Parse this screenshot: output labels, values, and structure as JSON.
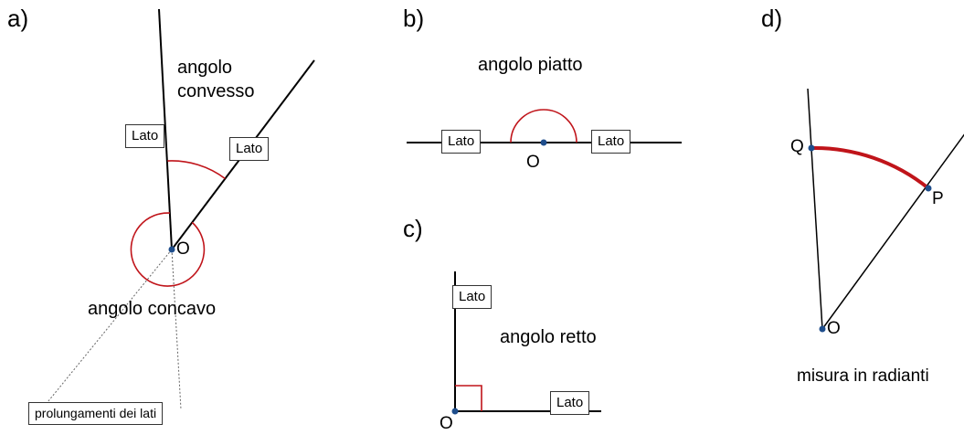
{
  "panels": {
    "a": {
      "letter": "a)",
      "convex_caption_line1": "angolo",
      "convex_caption_line2": "convesso",
      "concave_caption": "angolo concavo",
      "side_label_1": "Lato",
      "side_label_2": "Lato",
      "vertex": "O",
      "extensions_label": "prolungamenti dei lati"
    },
    "b": {
      "letter": "b)",
      "caption": "angolo piatto",
      "side_label_left": "Lato",
      "side_label_right": "Lato",
      "vertex": "O"
    },
    "c": {
      "letter": "c)",
      "caption": "angolo retto",
      "side_label_vertical": "Lato",
      "side_label_horizontal": "Lato",
      "vertex": "O"
    },
    "d": {
      "letter": "d)",
      "caption": "misura in radianti",
      "point_q": "Q",
      "point_p": "P",
      "vertex": "O"
    }
  },
  "colors": {
    "line": "#000000",
    "arc": "#c0141a",
    "point": "#1f4e8c",
    "dashed": "#666666"
  }
}
